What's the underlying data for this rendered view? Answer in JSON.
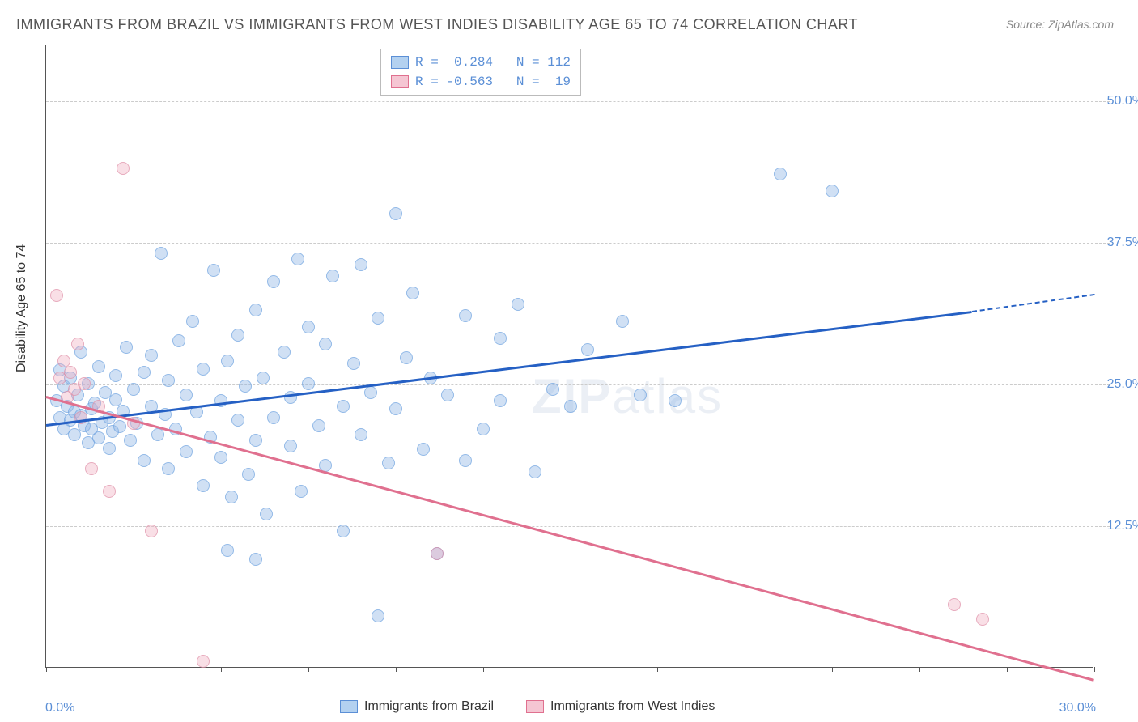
{
  "title": "IMMIGRANTS FROM BRAZIL VS IMMIGRANTS FROM WEST INDIES DISABILITY AGE 65 TO 74 CORRELATION CHART",
  "source": "Source: ZipAtlas.com",
  "ylabel": "Disability Age 65 to 74",
  "watermark_bold": "ZIP",
  "watermark_light": "atlas",
  "chart": {
    "type": "scatter",
    "xlim": [
      0,
      30
    ],
    "ylim": [
      0,
      55
    ],
    "x_start_label": "0.0%",
    "x_end_label": "30.0%",
    "yticks": [
      {
        "value": 12.5,
        "label": "12.5%"
      },
      {
        "value": 25.0,
        "label": "25.0%"
      },
      {
        "value": 37.5,
        "label": "37.5%"
      },
      {
        "value": 50.0,
        "label": "50.0%"
      }
    ],
    "xticks": [
      0,
      2.5,
      5,
      7.5,
      10,
      12.5,
      15,
      17.5,
      20,
      22.5,
      25,
      27.5,
      30
    ],
    "grid_color": "#cccccc",
    "background_color": "#ffffff",
    "axis_color": "#555555",
    "series": [
      {
        "name": "Immigrants from Brazil",
        "color_fill": "#b3d1f0",
        "color_stroke": "#5b8fd6",
        "R": 0.284,
        "N": 112,
        "trend": {
          "x0": 0,
          "y0": 21.5,
          "x1": 26.5,
          "y1": 31.5,
          "dash_to_x": 30,
          "dash_to_y": 33.0,
          "color": "#2560c4"
        },
        "points": [
          [
            0.3,
            23.5
          ],
          [
            0.4,
            26.2
          ],
          [
            0.4,
            22.0
          ],
          [
            0.5,
            24.8
          ],
          [
            0.5,
            21.0
          ],
          [
            0.6,
            23.0
          ],
          [
            0.7,
            25.5
          ],
          [
            0.7,
            21.8
          ],
          [
            0.8,
            22.5
          ],
          [
            0.8,
            20.5
          ],
          [
            0.9,
            24.0
          ],
          [
            1.0,
            27.8
          ],
          [
            1.0,
            22.2
          ],
          [
            1.1,
            21.3
          ],
          [
            1.2,
            25.0
          ],
          [
            1.2,
            19.8
          ],
          [
            1.3,
            22.8
          ],
          [
            1.3,
            21.0
          ],
          [
            1.4,
            23.3
          ],
          [
            1.5,
            20.2
          ],
          [
            1.5,
            26.5
          ],
          [
            1.6,
            21.6
          ],
          [
            1.7,
            24.2
          ],
          [
            1.8,
            22.0
          ],
          [
            1.8,
            19.3
          ],
          [
            1.9,
            20.8
          ],
          [
            2.0,
            23.6
          ],
          [
            2.0,
            25.7
          ],
          [
            2.1,
            21.2
          ],
          [
            2.2,
            22.6
          ],
          [
            2.3,
            28.2
          ],
          [
            2.4,
            20.0
          ],
          [
            2.5,
            24.5
          ],
          [
            2.6,
            21.5
          ],
          [
            2.8,
            26.0
          ],
          [
            2.8,
            18.2
          ],
          [
            3.0,
            23.0
          ],
          [
            3.0,
            27.5
          ],
          [
            3.2,
            20.5
          ],
          [
            3.3,
            36.5
          ],
          [
            3.4,
            22.3
          ],
          [
            3.5,
            25.3
          ],
          [
            3.5,
            17.5
          ],
          [
            3.7,
            21.0
          ],
          [
            3.8,
            28.8
          ],
          [
            4.0,
            19.0
          ],
          [
            4.0,
            24.0
          ],
          [
            4.2,
            30.5
          ],
          [
            4.3,
            22.5
          ],
          [
            4.5,
            26.3
          ],
          [
            4.5,
            16.0
          ],
          [
            4.7,
            20.3
          ],
          [
            4.8,
            35.0
          ],
          [
            5.0,
            23.5
          ],
          [
            5.0,
            18.5
          ],
          [
            5.2,
            27.0
          ],
          [
            5.3,
            15.0
          ],
          [
            5.5,
            21.8
          ],
          [
            5.5,
            29.3
          ],
          [
            5.7,
            24.8
          ],
          [
            5.8,
            17.0
          ],
          [
            6.0,
            31.5
          ],
          [
            6.0,
            20.0
          ],
          [
            6.2,
            25.5
          ],
          [
            6.3,
            13.5
          ],
          [
            6.5,
            22.0
          ],
          [
            6.5,
            34.0
          ],
          [
            6.8,
            27.8
          ],
          [
            7.0,
            19.5
          ],
          [
            7.0,
            23.8
          ],
          [
            7.2,
            36.0
          ],
          [
            7.3,
            15.5
          ],
          [
            7.5,
            25.0
          ],
          [
            7.5,
            30.0
          ],
          [
            7.8,
            21.3
          ],
          [
            8.0,
            28.5
          ],
          [
            8.0,
            17.8
          ],
          [
            8.2,
            34.5
          ],
          [
            8.5,
            23.0
          ],
          [
            8.5,
            12.0
          ],
          [
            8.8,
            26.8
          ],
          [
            9.0,
            20.5
          ],
          [
            9.0,
            35.5
          ],
          [
            9.3,
            24.2
          ],
          [
            9.5,
            30.8
          ],
          [
            9.5,
            4.5
          ],
          [
            9.8,
            18.0
          ],
          [
            10.0,
            40.0
          ],
          [
            10.0,
            22.8
          ],
          [
            10.3,
            27.3
          ],
          [
            10.5,
            33.0
          ],
          [
            10.8,
            19.2
          ],
          [
            11.0,
            25.5
          ],
          [
            11.2,
            10.0
          ],
          [
            11.5,
            24.0
          ],
          [
            12.0,
            31.0
          ],
          [
            12.0,
            18.2
          ],
          [
            12.5,
            21.0
          ],
          [
            13.0,
            29.0
          ],
          [
            13.0,
            23.5
          ],
          [
            13.5,
            32.0
          ],
          [
            14.0,
            17.2
          ],
          [
            14.5,
            24.5
          ],
          [
            15.0,
            23.0
          ],
          [
            15.5,
            28.0
          ],
          [
            16.5,
            30.5
          ],
          [
            17.0,
            24.0
          ],
          [
            18.0,
            23.5
          ],
          [
            21.0,
            43.5
          ],
          [
            22.5,
            42.0
          ],
          [
            6.0,
            9.5
          ],
          [
            5.2,
            10.3
          ]
        ]
      },
      {
        "name": "Immigrants from West Indies",
        "color_fill": "#f5c6d3",
        "color_stroke": "#e0708f",
        "R": -0.563,
        "N": 19,
        "trend": {
          "x0": 0,
          "y0": 24.0,
          "x1": 30,
          "y1": -1.0,
          "color": "#e0708f"
        },
        "points": [
          [
            0.3,
            32.8
          ],
          [
            0.4,
            25.5
          ],
          [
            0.5,
            27.0
          ],
          [
            0.6,
            23.8
          ],
          [
            0.7,
            26.0
          ],
          [
            0.8,
            24.5
          ],
          [
            0.9,
            28.5
          ],
          [
            1.0,
            22.0
          ],
          [
            1.1,
            25.0
          ],
          [
            1.3,
            17.5
          ],
          [
            1.5,
            23.0
          ],
          [
            1.8,
            15.5
          ],
          [
            2.2,
            44.0
          ],
          [
            2.5,
            21.5
          ],
          [
            3.0,
            12.0
          ],
          [
            4.5,
            0.5
          ],
          [
            11.2,
            10.0
          ],
          [
            26.0,
            5.5
          ],
          [
            26.8,
            4.2
          ]
        ]
      }
    ],
    "legend_bottom": [
      {
        "swatch": "blue",
        "label": "Immigrants from Brazil"
      },
      {
        "swatch": "pink",
        "label": "Immigrants from West Indies"
      }
    ],
    "legend_top": [
      {
        "swatch": "blue",
        "text": "R =  0.284   N = 112"
      },
      {
        "swatch": "pink",
        "text": "R = -0.563   N =  19"
      }
    ]
  }
}
